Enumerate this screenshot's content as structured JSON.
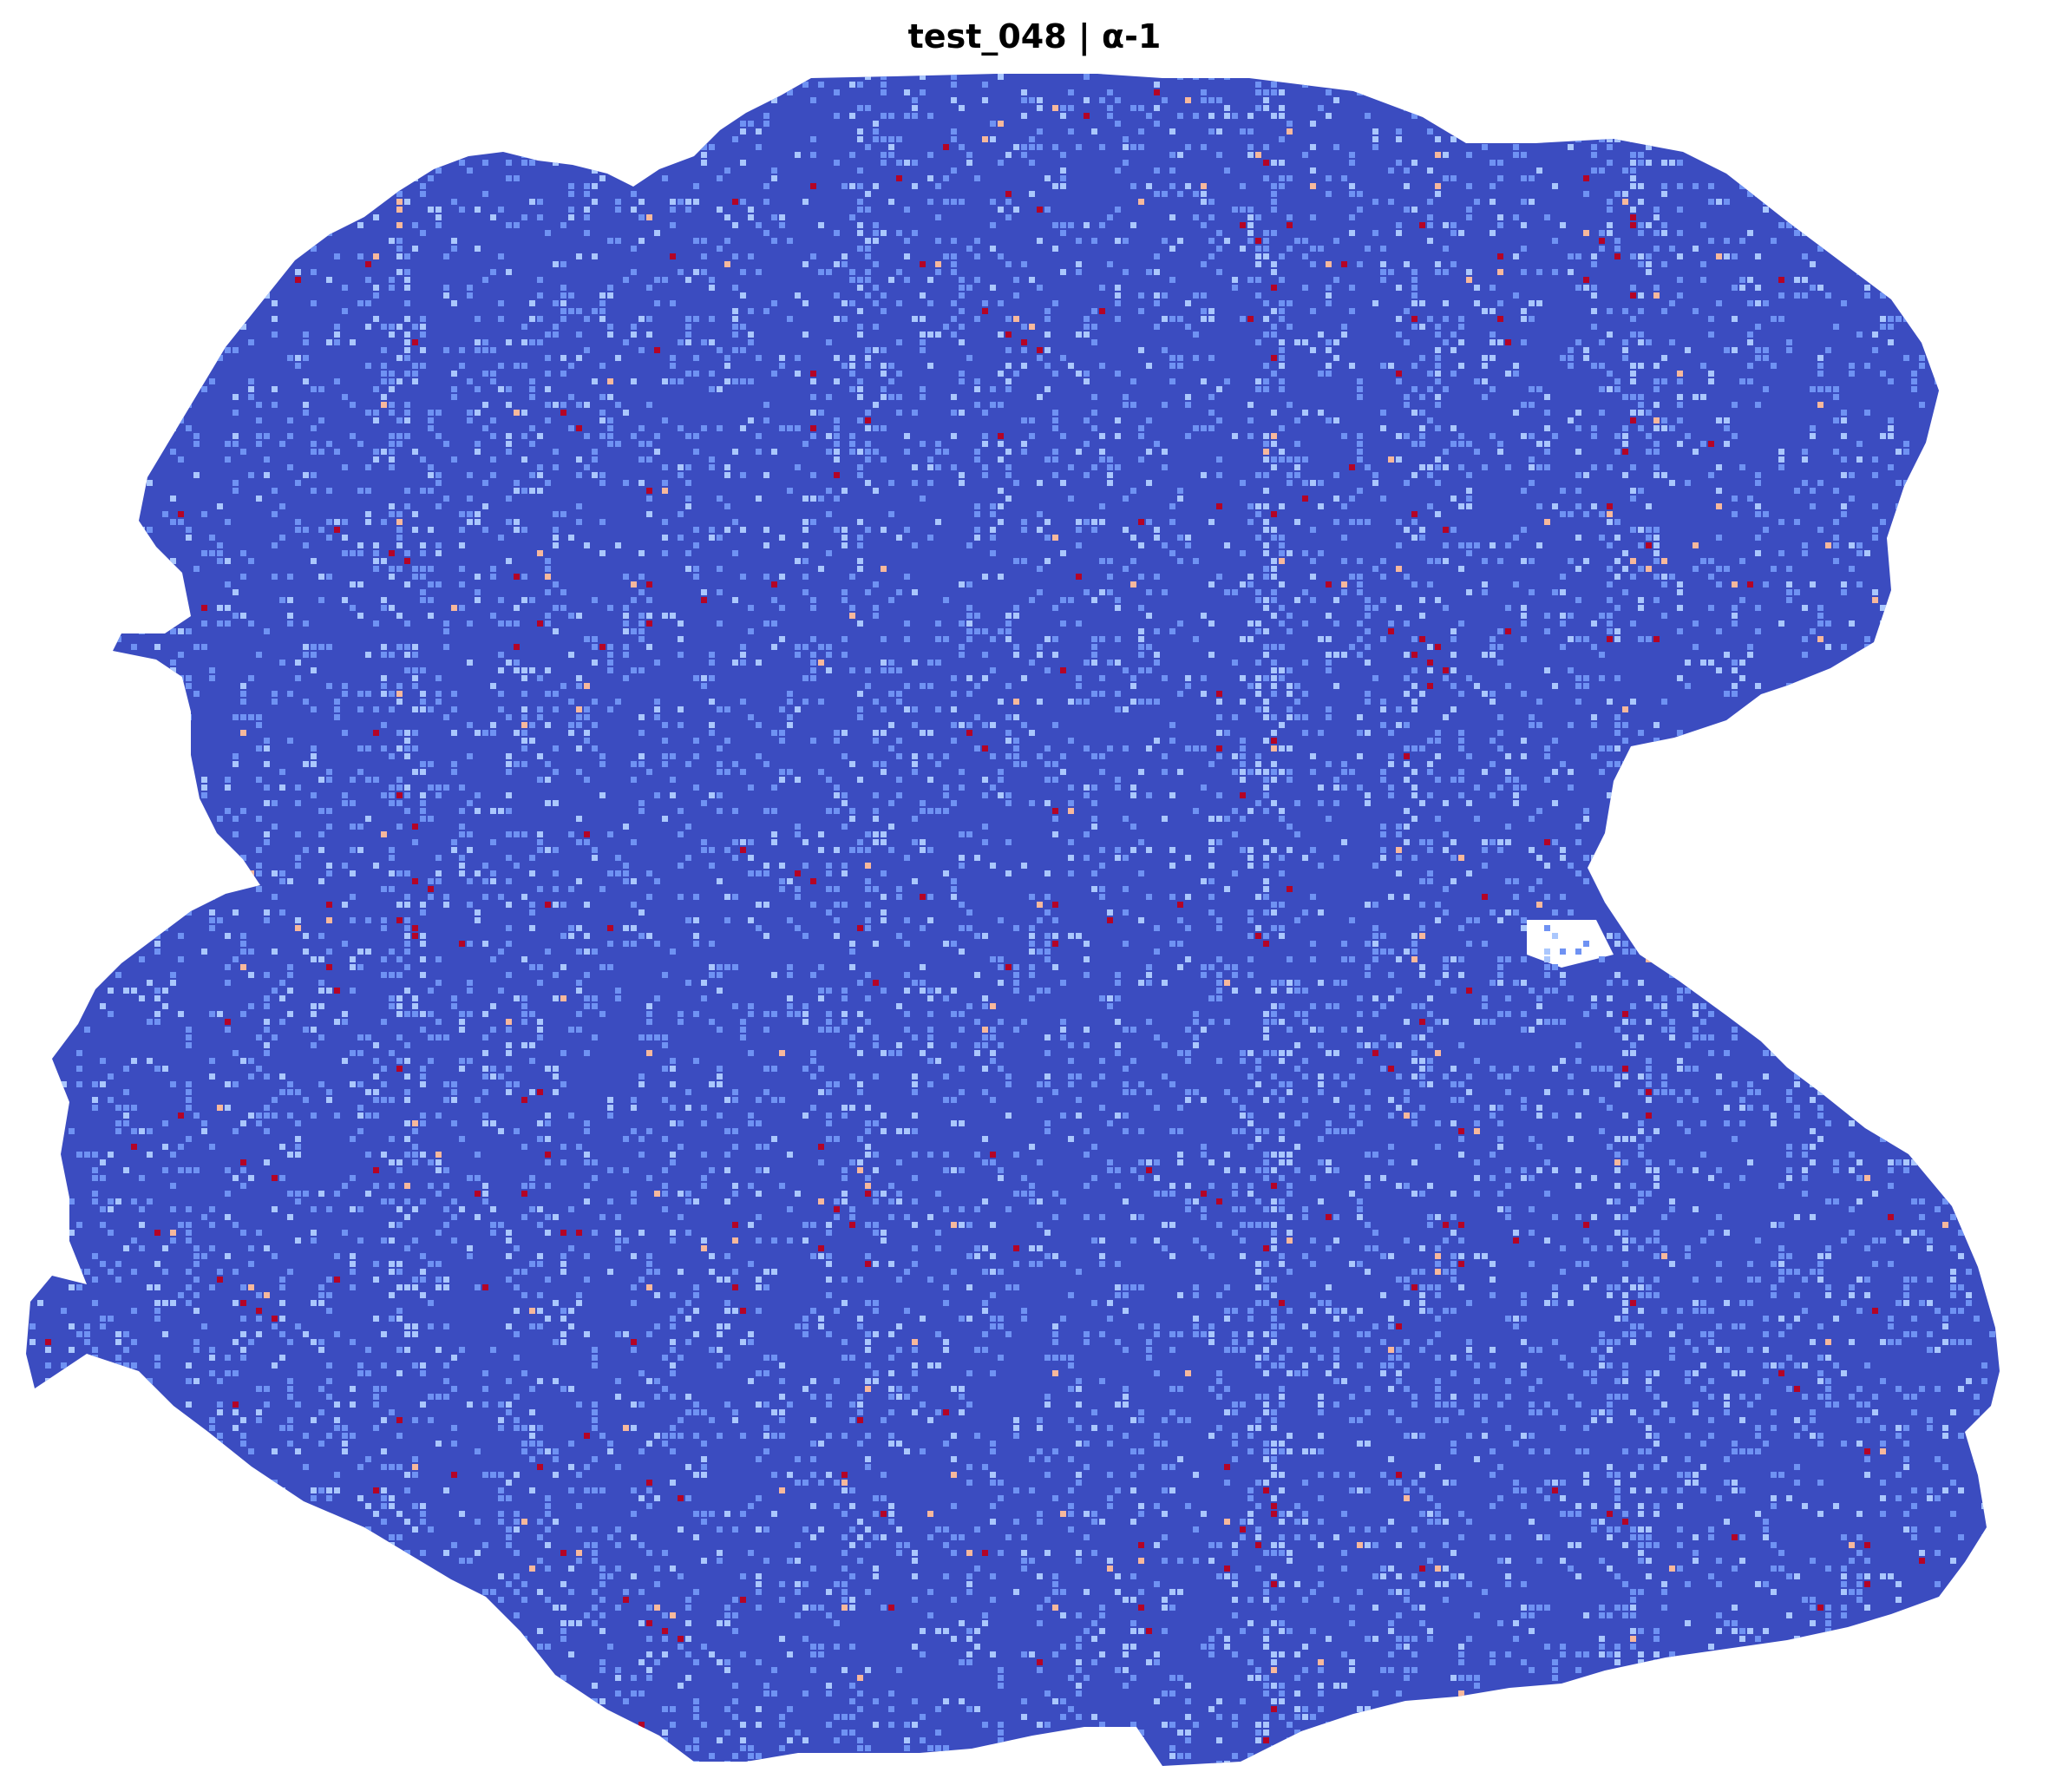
{
  "chart_data": {
    "type": "heatmap",
    "title": "test_048 | α-1",
    "colormap": "coolwarm",
    "axes": "off",
    "grid": false,
    "legend": "none",
    "colors": {
      "background": "#ffffff",
      "low": "#3b4cc0",
      "mid_low": "#6f92f3",
      "mid": "#aac7fd",
      "mid_high": "#f7b89c",
      "high": "#b40426"
    }
  }
}
